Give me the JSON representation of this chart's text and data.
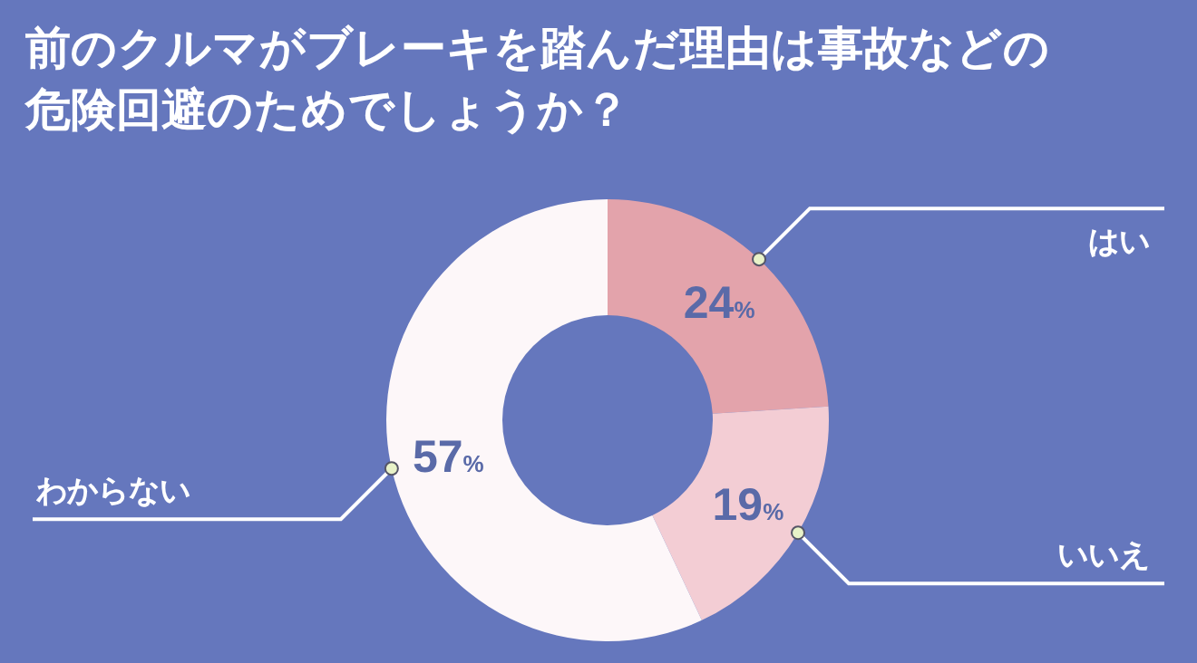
{
  "chart_data": {
    "type": "donut",
    "title": "前のクルマがブレーキを踏んだ理由は事故などの危険回避のためでしょうか？",
    "categories": [
      "はい",
      "いいえ",
      "わからない"
    ],
    "values": [
      24,
      19,
      57
    ],
    "value_labels": [
      "24%",
      "19%",
      "57%"
    ],
    "colors": [
      "#e3a3ab",
      "#f3cdd4",
      "#fdf7f9"
    ]
  }
}
